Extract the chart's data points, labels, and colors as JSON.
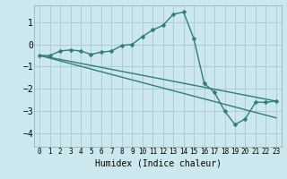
{
  "xlabel": "Humidex (Indice chaleur)",
  "bg_color": "#cce8ee",
  "line_color": "#2e7d7d",
  "grid_color": "#aacdd6",
  "xlim": [
    -0.5,
    23.5
  ],
  "ylim": [
    -4.6,
    1.75
  ],
  "yticks": [
    -4,
    -3,
    -2,
    -1,
    0,
    1
  ],
  "xticks": [
    0,
    1,
    2,
    3,
    4,
    5,
    6,
    7,
    8,
    9,
    10,
    11,
    12,
    13,
    14,
    15,
    16,
    17,
    18,
    19,
    20,
    21,
    22,
    23
  ],
  "main_x": [
    0,
    1,
    2,
    3,
    4,
    5,
    6,
    7,
    8,
    9,
    10,
    11,
    12,
    13,
    14,
    15,
    16,
    17,
    18,
    19,
    20,
    21,
    22,
    23
  ],
  "main_y": [
    -0.5,
    -0.5,
    -0.3,
    -0.25,
    -0.3,
    -0.45,
    -0.35,
    -0.3,
    -0.05,
    0.0,
    0.35,
    0.65,
    0.85,
    1.35,
    1.45,
    0.25,
    -1.75,
    -2.15,
    -3.0,
    -3.6,
    -3.35,
    -2.6,
    -2.6,
    -2.55
  ],
  "trend1_x": [
    0,
    23
  ],
  "trend1_y": [
    -0.5,
    -2.55
  ],
  "trend2_x": [
    0,
    23
  ],
  "trend2_y": [
    -0.5,
    -3.3
  ],
  "markersize": 2.5,
  "linewidth": 1.0
}
